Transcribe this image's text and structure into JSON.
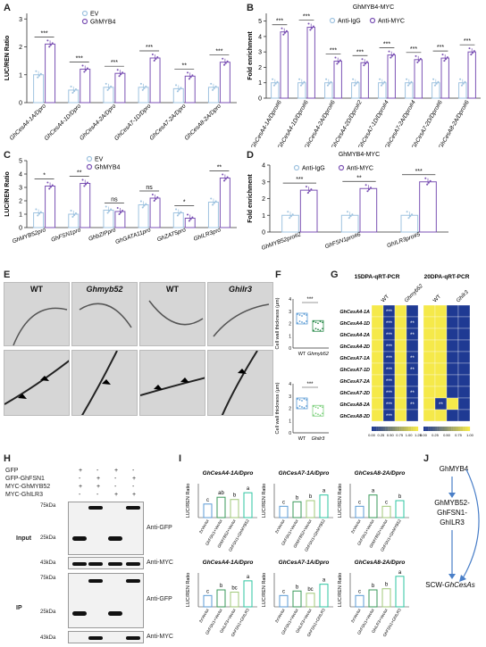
{
  "panels": {
    "A": {
      "label": "A",
      "ylabel": "LUC/REN Ratio",
      "legend": [
        "EV",
        "GhMYB4"
      ],
      "sig": [
        "***",
        "***",
        "***",
        "***",
        "**",
        "***"
      ],
      "ticks": [
        "0",
        "1",
        "2",
        "3"
      ],
      "categories": [
        "GhCesA4-1A/Dpro",
        "GhCesA4-1D/Dpro",
        "GhCesA4-2A/Dpro",
        "GhCesA7-1D/Dpro",
        "GhCesA7-2A/Dpro",
        "GhCesA8-2A/Dpro"
      ]
    },
    "B": {
      "label": "B",
      "title": "GhMYB4-MYC",
      "ylabel": "Fold enrichment",
      "legend": [
        "Anti-IgG",
        "Anti-MYC"
      ],
      "sig": [
        "***",
        "***",
        "***",
        "***",
        "***",
        "***",
        "***",
        "***"
      ],
      "ticks": [
        "0",
        "1",
        "2",
        "3",
        "4",
        "5"
      ],
      "categories": [
        "GhCesA4-1A/Dpro#6",
        "GhCesA4-1D/Dpro#6",
        "GhCesA4-2A/Dpro#6",
        "GhCesA4-2D/Dpro#2",
        "GhCesA7-1D/Dpro#4",
        "GhCesA7-2A/Dpro#4",
        "GhCesA7-2D/Dpro#6",
        "GhCesA8-2A/Dpro#6"
      ]
    },
    "C": {
      "label": "C",
      "ylabel": "LUC/REN Ratio",
      "legend": [
        "EV",
        "GhMYB4"
      ],
      "sig": [
        "*",
        "**",
        "ns",
        "ns",
        "*",
        "**"
      ],
      "ticks": [
        "0",
        "1",
        "2",
        "3",
        "4",
        "5"
      ],
      "categories": [
        "GhMYB52pro",
        "GhFSN1pro",
        "GhbZIPpro",
        "GhGATA11pro",
        "GhZAT5pro",
        "GhILR3pro"
      ]
    },
    "D": {
      "label": "D",
      "title": "GhMYB4-MYC",
      "ylabel": "Fold enrichment",
      "legend": [
        "Anti-IgG",
        "Anti-MYC"
      ],
      "sig": [
        "***",
        "**",
        "***"
      ],
      "ticks": [
        "0",
        "1",
        "2",
        "3",
        "4"
      ],
      "categories": [
        "GhMYB52pro#2",
        "GhFSN1pro#6",
        "GhILR3pro#5"
      ]
    },
    "E": {
      "label": "E",
      "cols": [
        "WT",
        "Ghmyb52",
        "WT",
        "Ghilr3"
      ]
    },
    "F": {
      "label": "F",
      "ylabel": "Cell wall thickness (μm)",
      "top_sig": "***",
      "top_x": [
        "WT",
        "Ghmyb52"
      ],
      "bottom_sig": "***",
      "bottom_x": [
        "WT",
        "Ghilr3"
      ],
      "ticks": [
        "0",
        "1",
        "2",
        "3",
        "4"
      ]
    },
    "G": {
      "label": "G",
      "title_left": "15DPA-qRT-PCR",
      "title_right": "20DPA-qRT-PCR",
      "cols": [
        "WT",
        "Ghmyb52",
        "WT",
        "Ghilr3"
      ],
      "rows": [
        "GhCesA4-1A",
        "GhCesA4-1D",
        "GhCesA4-2A",
        "GhCesA4-2D",
        "GhCesA7-1A",
        "GhCesA7-1D",
        "GhCesA7-2A",
        "GhCesA7-2D",
        "GhCesA8-2A",
        "GhCesA8-2D"
      ],
      "scale_left": [
        "0.00",
        "0.25",
        "0.50",
        "0.75",
        "1.00",
        "1.25"
      ],
      "scale_right": [
        "0.00",
        "0.25",
        "0.50",
        "0.75",
        "1.00"
      ]
    },
    "H": {
      "label": "H",
      "rows": [
        "GFP",
        "GFP-GhFSN1",
        "MYC-GhMYB52",
        "MYC-GhILR3"
      ],
      "signs": [
        [
          "+",
          "",
          "+",
          ""
        ],
        [
          "",
          "+",
          "",
          "+"
        ],
        [
          "+",
          "+",
          "",
          ""
        ],
        [
          "",
          "",
          "+",
          "+"
        ]
      ],
      "sections": [
        "Input",
        "IP"
      ],
      "markers": [
        "75kDa",
        "25kDa",
        "43kDa",
        "75kDa",
        "25kDa",
        "43kDa"
      ],
      "antibodies": [
        "Anti-GFP",
        "Anti-MYC",
        "Anti-GFP",
        "Anti-MYC"
      ]
    },
    "I": {
      "label": "I",
      "ylabel": "LUC/REN Ratio",
      "top_titles": [
        "GhCesA4-1A/Dpro",
        "GhCesA7-1A/Dpro",
        "GhCesA8-2A/Dpro"
      ],
      "bottom_titles": [
        "GhCesA4-1A/Dpro",
        "GhCesA7-1A/Dpro",
        "GhCesA8-2A/Dpro"
      ],
      "top_x": [
        "2xVector",
        "GhFSN1+Vector",
        "GhMYB52+Vector",
        "GhFSN1+GhMYB52"
      ],
      "bottom_x": [
        "2xVector",
        "GhFSN1+Vector",
        "GhILR3+Vector",
        "GhFSN1+GhILR3"
      ],
      "letters_top": [
        [
          "c",
          "ab",
          "b",
          "a"
        ],
        [
          "c",
          "b",
          "b",
          "a"
        ],
        [
          "c",
          "a",
          "c",
          "b"
        ]
      ],
      "letters_bottom": [
        [
          "c",
          "b",
          "bc",
          "a"
        ],
        [
          "c",
          "b",
          "bc",
          "a"
        ],
        [
          "c",
          "b",
          "b",
          "a"
        ]
      ]
    },
    "J": {
      "label": "J",
      "nodes": [
        "GhMYB4",
        "GhMYB52-\nGhFSN1-\nGhILR3",
        "SCW-GhCesAs"
      ]
    }
  },
  "colors": {
    "ev": "#9fc3e0",
    "myb4": "#7b52b4",
    "low": "#1f3a93",
    "high": "#f5e94a"
  }
}
